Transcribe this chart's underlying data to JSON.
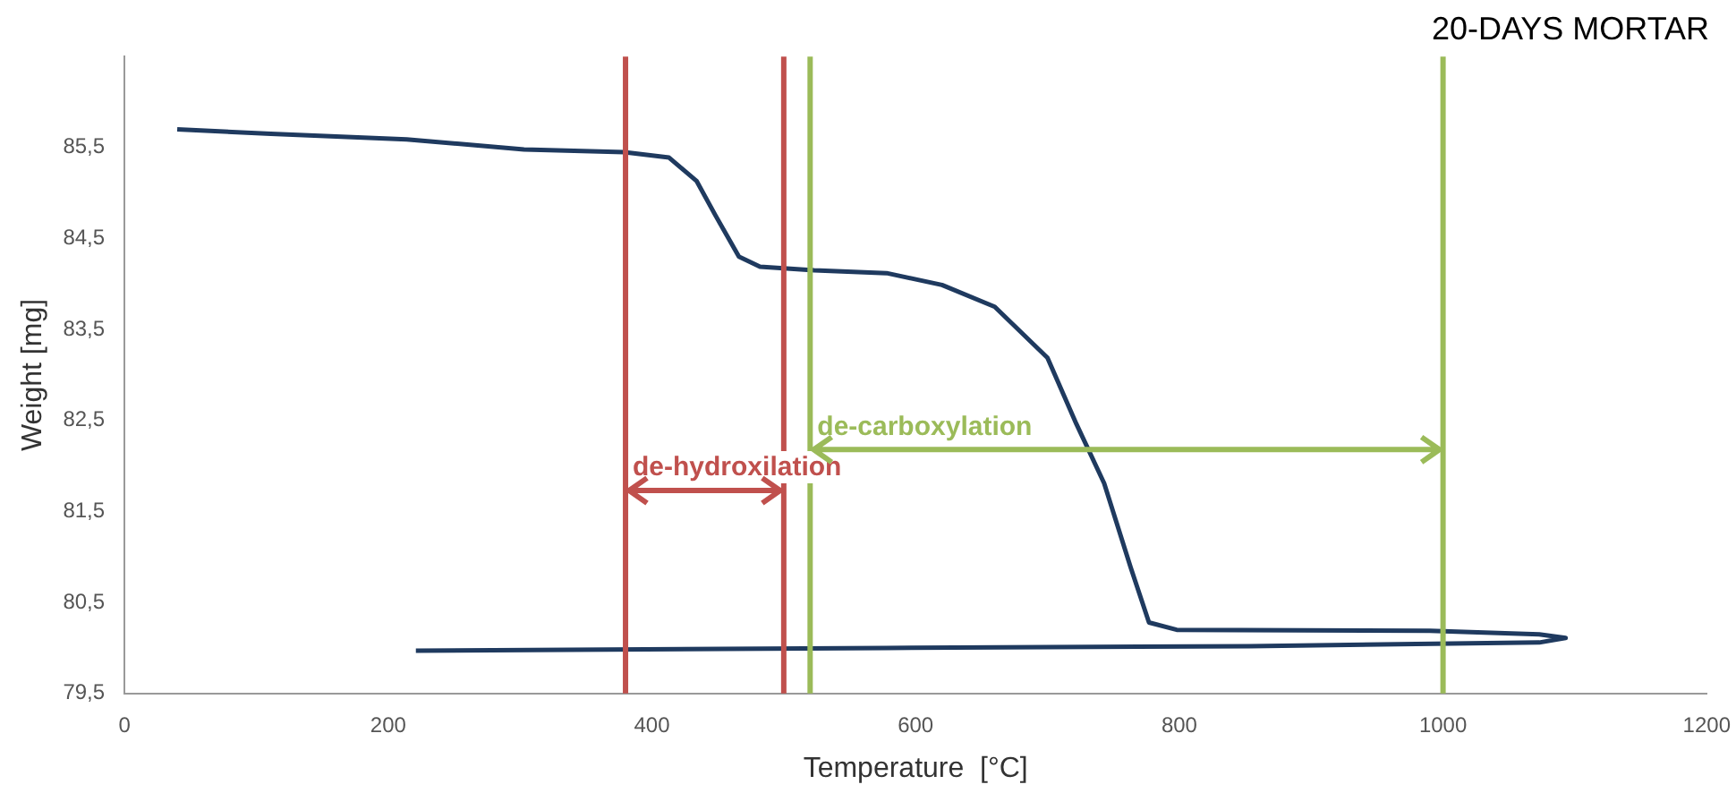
{
  "chart_data": {
    "type": "line",
    "title": "20-DAYS MORTAR",
    "xlabel": "Temperature  [°C]",
    "ylabel": "Weight [mg]",
    "series": [
      {
        "color": "#1f3a5f",
        "x": [
          40,
          111,
          214,
          303,
          379,
          413,
          434,
          448,
          466,
          482,
          523,
          578,
          620,
          660,
          700,
          722,
          743,
          763,
          777,
          798,
          990,
          1073,
          1093,
          1073,
          853,
          578,
          221
        ],
        "values": [
          85.7,
          85.65,
          85.59,
          85.48,
          85.45,
          85.39,
          85.13,
          84.76,
          84.3,
          84.19,
          84.15,
          84.12,
          83.99,
          83.75,
          83.19,
          82.46,
          81.81,
          80.89,
          80.28,
          80.2,
          80.19,
          80.15,
          80.11,
          80.06,
          80.02,
          80.0,
          79.97
        ]
      }
    ],
    "xlim": [
      0,
      1200
    ],
    "xticks": [
      0,
      200,
      400,
      600,
      800,
      1000,
      1200
    ],
    "ylim": [
      79.5,
      86.5
    ],
    "yticks": [
      {
        "value": 79.5,
        "label": "79,5"
      },
      {
        "value": 80.5,
        "label": "80,5"
      },
      {
        "value": 81.5,
        "label": "81,5"
      },
      {
        "value": 82.5,
        "label": "82,5"
      },
      {
        "value": 83.5,
        "label": "83,5"
      },
      {
        "value": 84.5,
        "label": "84,5"
      },
      {
        "value": 85.5,
        "label": "85,5"
      }
    ],
    "ref_lines": [
      {
        "axis": "x",
        "value": 380,
        "color": "#c0504d"
      },
      {
        "axis": "x",
        "value": 500,
        "color": "#c0504d"
      },
      {
        "axis": "x",
        "value": 520,
        "color": "#9bbb59"
      },
      {
        "axis": "x",
        "value": 1000,
        "color": "#9bbb59"
      }
    ],
    "annotations": [
      {
        "text": "de-hydroxilation",
        "x": 380,
        "y": 81.73
      },
      {
        "text": "de-carboxylation",
        "x": 520,
        "y": 82.18
      }
    ],
    "grid": false,
    "legend": false,
    "marker": "none",
    "line_style": "solid"
  }
}
